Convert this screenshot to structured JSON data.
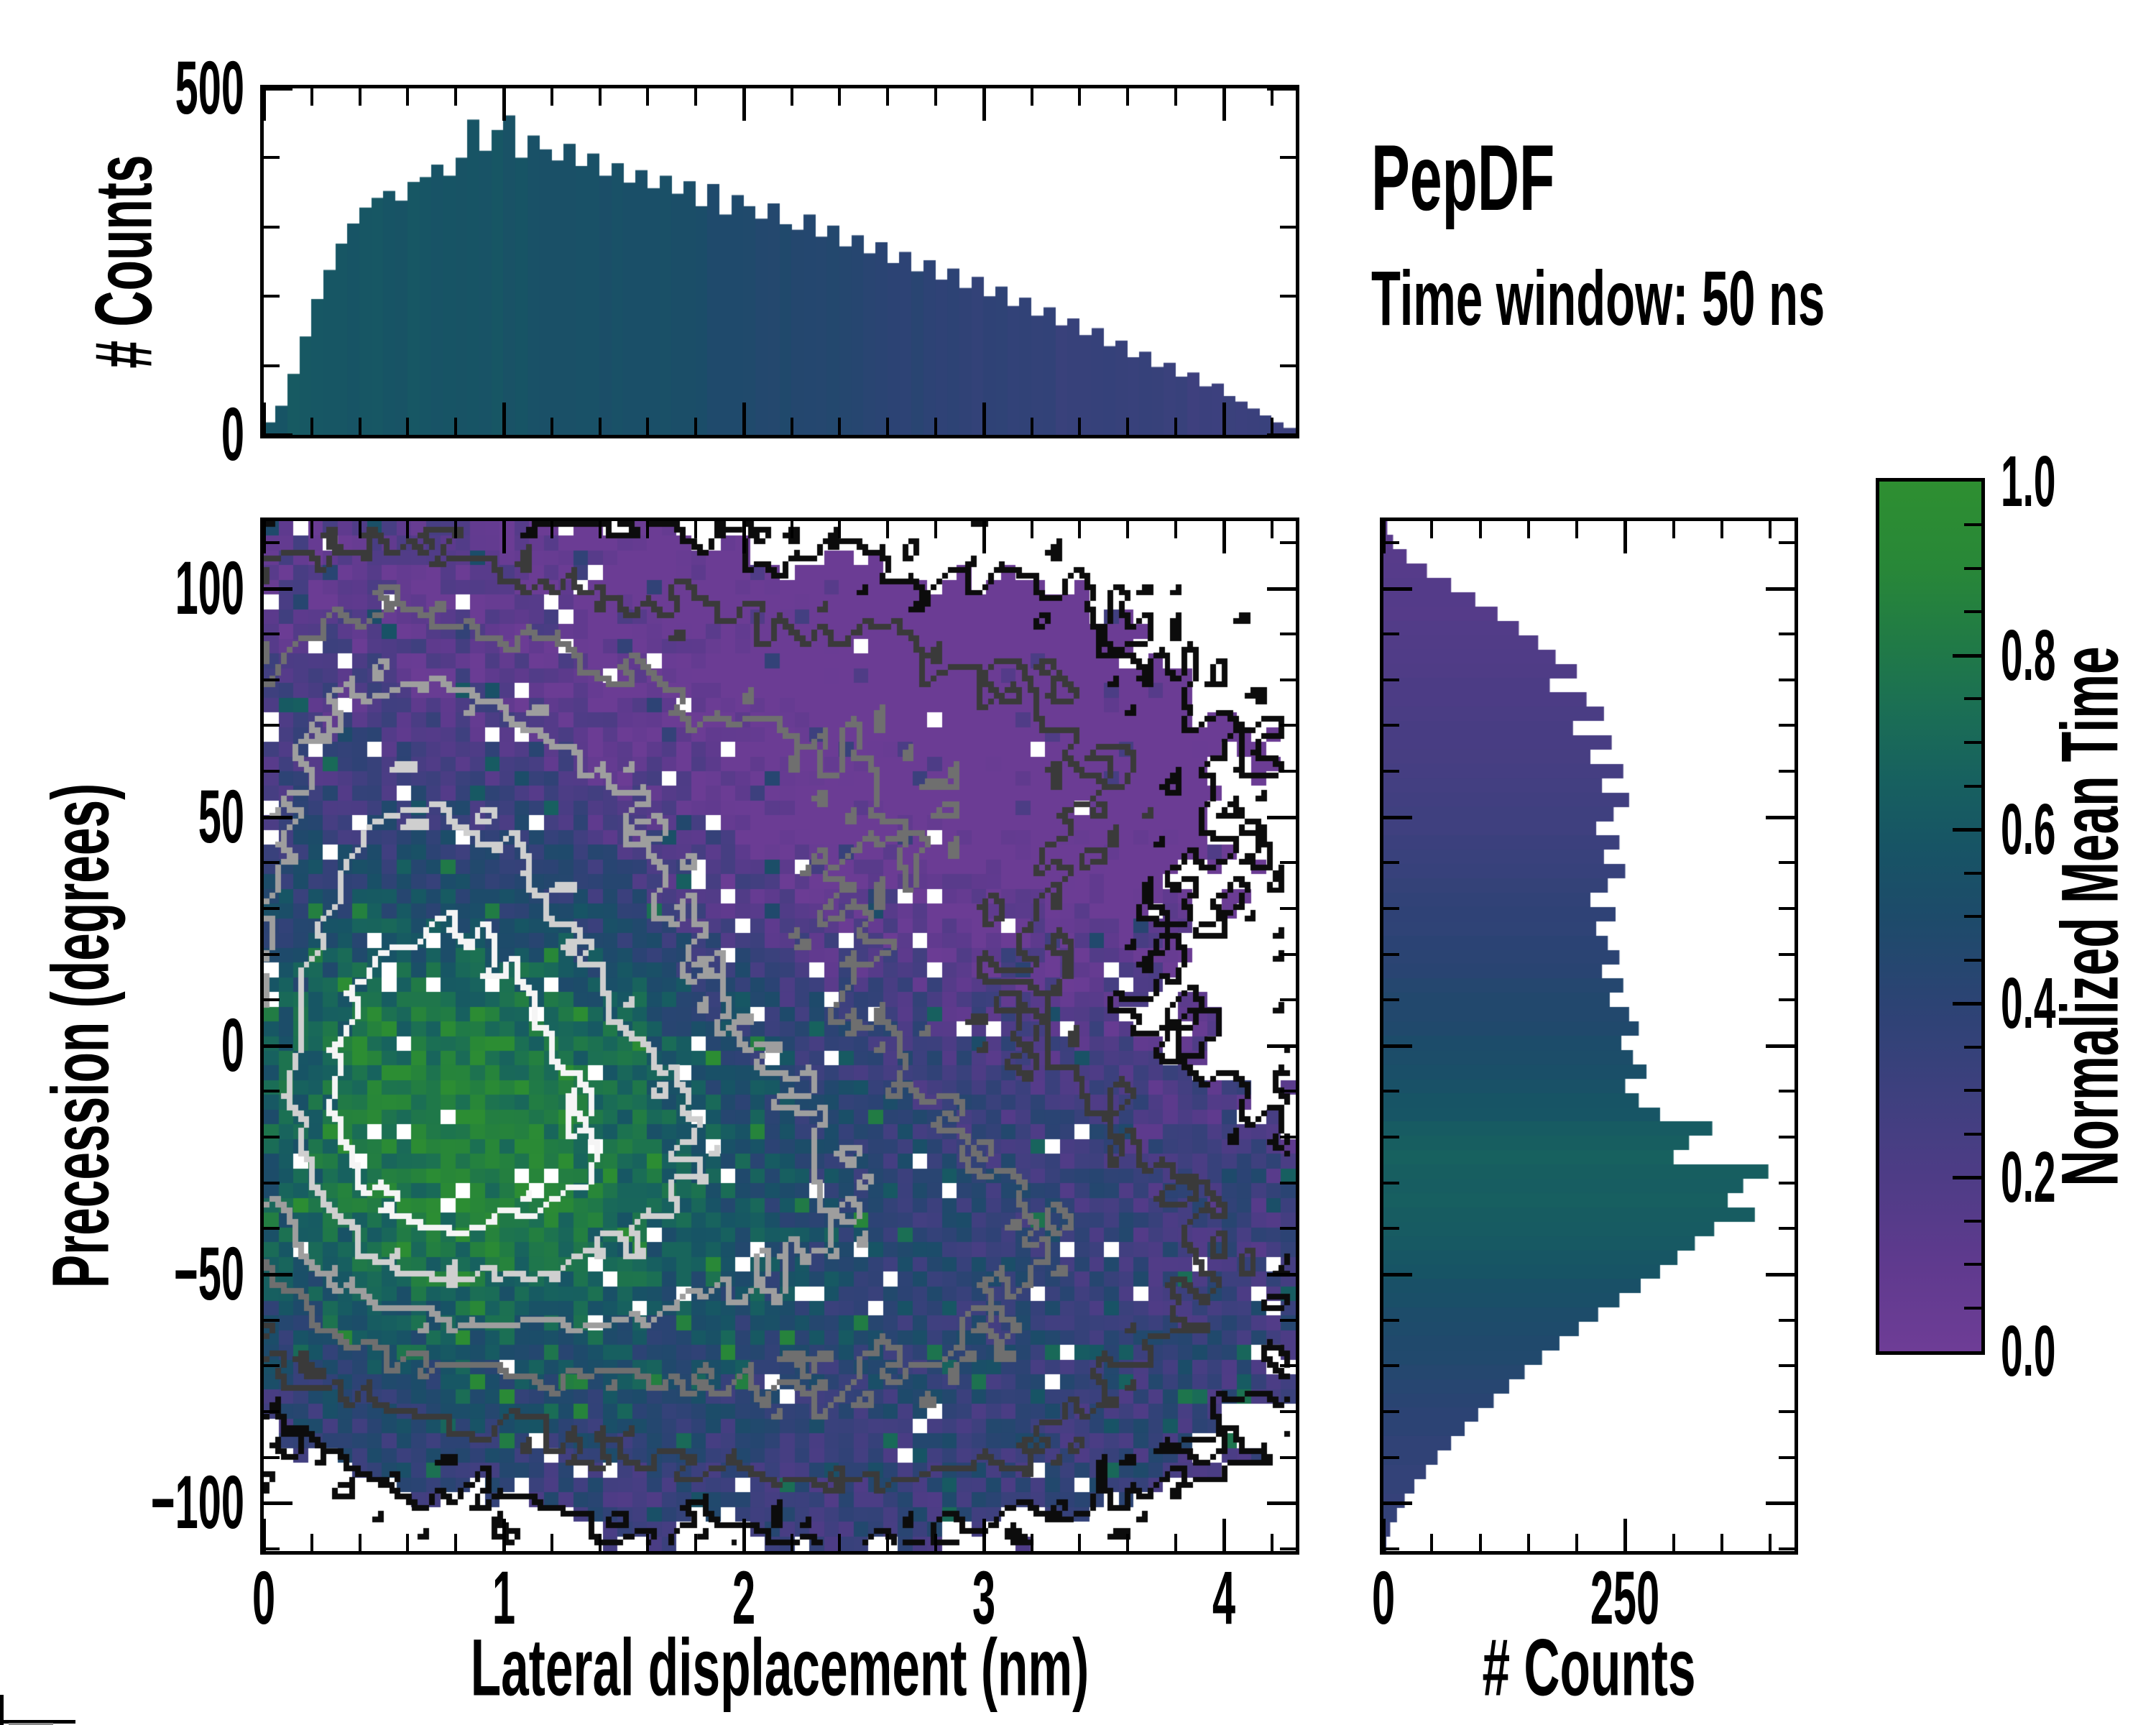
{
  "figure": {
    "background": "#ffffff",
    "title": "PepDF",
    "subtitle": "Time window: 50 ns"
  },
  "colormap_stops": [
    [
      0.0,
      "#6e3d96"
    ],
    [
      0.1,
      "#5f3a8e"
    ],
    [
      0.2,
      "#4e3c86"
    ],
    [
      0.3,
      "#3d407e"
    ],
    [
      0.4,
      "#2c4374"
    ],
    [
      0.5,
      "#1d4b6a"
    ],
    [
      0.58,
      "#175465"
    ],
    [
      0.66,
      "#17615f"
    ],
    [
      0.74,
      "#1b6f54"
    ],
    [
      0.82,
      "#217b45"
    ],
    [
      0.9,
      "#288738"
    ],
    [
      1.0,
      "#2e8f31"
    ]
  ],
  "chart_data": [
    {
      "id": "top_marginal",
      "type": "bar",
      "orientation": "vertical",
      "ylabel": "# Counts",
      "x_range": [
        0,
        4.3
      ],
      "y_range": [
        0,
        500
      ],
      "bin_width_nm": 0.05,
      "x_minor_step": 0.2,
      "x_major_values": [
        0,
        1,
        2,
        3,
        4
      ],
      "y_ticks": [
        {
          "label": "500",
          "value": 500
        },
        {
          "label": "0",
          "value": 0
        }
      ],
      "y_minor_step": 100,
      "values": [
        18,
        42,
        88,
        142,
        196,
        238,
        276,
        305,
        328,
        342,
        352,
        338,
        365,
        372,
        390,
        374,
        400,
        455,
        410,
        440,
        461,
        400,
        432,
        412,
        396,
        420,
        388,
        406,
        374,
        392,
        364,
        382,
        356,
        374,
        348,
        366,
        330,
        362,
        318,
        346,
        330,
        312,
        334,
        304,
        296,
        318,
        286,
        302,
        272,
        288,
        262,
        278,
        248,
        264,
        236,
        252,
        224,
        240,
        212,
        228,
        200,
        214,
        186,
        198,
        172,
        184,
        158,
        168,
        144,
        154,
        128,
        136,
        112,
        120,
        98,
        104,
        84,
        90,
        70,
        74,
        56,
        48,
        38,
        28,
        18,
        10
      ],
      "color_t_stops": [
        [
          0,
          0.6
        ],
        [
          0.2,
          0.58
        ],
        [
          0.4,
          0.52
        ],
        [
          0.6,
          0.42
        ],
        [
          0.8,
          0.33
        ],
        [
          1,
          0.3
        ]
      ],
      "color_jitter": 0.04
    },
    {
      "id": "joint_density",
      "type": "heatmap",
      "xlabel": "Lateral displacement (nm)",
      "ylabel": "Precession (degrees)",
      "x_range": [
        0,
        4.3
      ],
      "y_range": [
        -110.5,
        114.7
      ],
      "x_ticks": [
        {
          "label": "0",
          "value": 0
        },
        {
          "label": "1",
          "value": 1
        },
        {
          "label": "2",
          "value": 2
        },
        {
          "label": "3",
          "value": 3
        },
        {
          "label": "4",
          "value": 4
        }
      ],
      "y_ticks": [
        {
          "label": "100",
          "value": 100
        },
        {
          "label": "50",
          "value": 50
        },
        {
          "label": "0",
          "value": 0
        },
        {
          "label": "−50",
          "value": -50
        },
        {
          "label": "−100",
          "value": -100
        }
      ],
      "x_minor_step": 0.2,
      "y_minor_step": 10,
      "grid": [
        70,
        70
      ],
      "value_meaning": "cell color = normalized mean time (see colormap_stops); white = unoccupied",
      "contour_levels": [
        0.15,
        0.35,
        0.6,
        0.9,
        1.25,
        1.6
      ],
      "contour_colors": [
        "#0c0c0c",
        "#3a3a3a",
        "#6f6f6f",
        "#9e9e9e",
        "#cfcfcf",
        "#f5f5f5"
      ],
      "density_gaussians": [
        [
          0.55,
          -8,
          0.5,
          36,
          0.95
        ],
        [
          1.05,
          -28,
          0.75,
          30,
          0.8
        ],
        [
          0.75,
          40,
          0.7,
          38,
          0.6
        ],
        [
          1.9,
          -20,
          0.95,
          42,
          0.55
        ],
        [
          1.6,
          60,
          1.1,
          32,
          0.35
        ],
        [
          2.9,
          58,
          0.85,
          28,
          0.3
        ],
        [
          3.1,
          -45,
          0.95,
          26,
          0.42
        ],
        [
          2.6,
          -85,
          0.8,
          16,
          0.25
        ],
        [
          0.3,
          80,
          0.5,
          25,
          0.35
        ]
      ],
      "occupancy_threshold": 0.15,
      "noise_amp": 0.22,
      "hole_prob": 0.035,
      "seed": 1337,
      "meantime": {
        "base": 0.2,
        "blobs": [
          [
            0.75,
            -15,
            0.85,
            46,
            0.58
          ],
          [
            1.9,
            -35,
            1.1,
            38,
            0.16
          ]
        ],
        "topright_suppress": [
          1.6,
          0.45,
          22,
          10,
          0.3
        ],
        "top_suppress": [
          60,
          15,
          0.08
        ],
        "bottomright_boost": [
          2.1,
          0.4,
          -35,
          12,
          0.12
        ],
        "noise": 0.3,
        "outlier_prob": 0.05,
        "outlier_boost": 0.3,
        "clamp": [
          0.02,
          0.97
        ]
      }
    },
    {
      "id": "right_marginal",
      "type": "bar",
      "orientation": "horizontal",
      "xlabel": "# Counts",
      "x_range": [
        0,
        425
      ],
      "y_range": [
        -110.5,
        114.7
      ],
      "bin_height_deg": 3.13,
      "x_ticks": [
        {
          "label": "0",
          "value": 0
        },
        {
          "label": "250",
          "value": 250
        }
      ],
      "x_minor_step": 50,
      "y_minor_step": 10,
      "values": [
        4,
        10,
        24,
        45,
        70,
        95,
        118,
        140,
        160,
        178,
        200,
        172,
        210,
        228,
        196,
        236,
        214,
        248,
        226,
        254,
        238,
        220,
        244,
        228,
        250,
        232,
        214,
        240,
        220,
        232,
        244,
        226,
        248,
        234,
        254,
        264,
        246,
        258,
        272,
        250,
        264,
        286,
        340,
        316,
        300,
        398,
        372,
        356,
        384,
        342,
        322,
        304,
        286,
        266,
        244,
        222,
        202,
        182,
        164,
        146,
        130,
        114,
        98,
        84,
        70,
        56,
        44,
        32,
        22,
        14,
        7,
        3
      ],
      "color_t_stops": [
        [
          0,
          0.13
        ],
        [
          0.15,
          0.2
        ],
        [
          0.3,
          0.3
        ],
        [
          0.45,
          0.44
        ],
        [
          0.55,
          0.55
        ],
        [
          0.62,
          0.66
        ],
        [
          0.7,
          0.62
        ],
        [
          0.8,
          0.48
        ],
        [
          0.9,
          0.38
        ],
        [
          1,
          0.33
        ]
      ],
      "color_jitter": 0.02
    },
    {
      "id": "colorbar",
      "type": "colorbar",
      "label": "Normalized Mean Time",
      "range": [
        0,
        1
      ],
      "ticks": [
        {
          "label": "1.0",
          "value": 1.0
        },
        {
          "label": "0.8",
          "value": 0.8
        },
        {
          "label": "0.6",
          "value": 0.6
        },
        {
          "label": "0.4",
          "value": 0.4
        },
        {
          "label": "0.2",
          "value": 0.2
        },
        {
          "label": "0.0",
          "value": 0.0
        }
      ],
      "minor_step": 0.05
    }
  ]
}
